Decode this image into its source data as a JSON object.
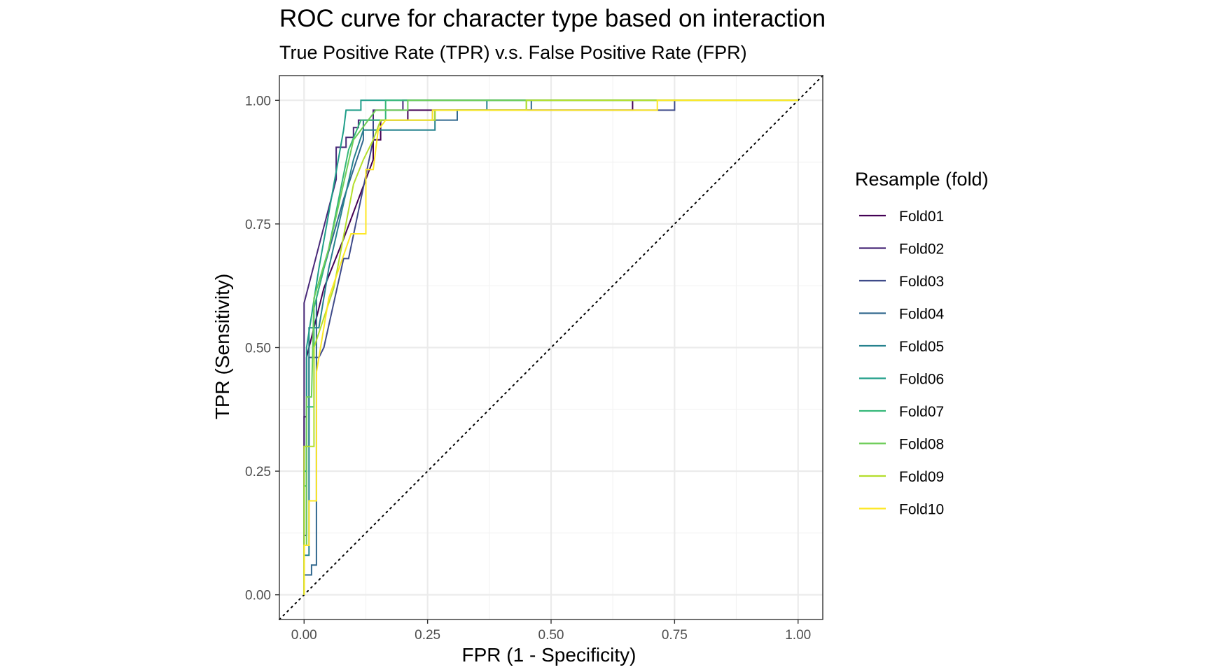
{
  "chart_data": {
    "type": "line",
    "title": "ROC curve for character type based on interaction",
    "subtitle": "True Positive Rate (TPR) v.s. False Positive Rate (FPR)",
    "xlabel": "FPR (1 - Specificity)",
    "ylabel": "TPR (Sensitivity)",
    "xlim": [
      -0.05,
      1.05
    ],
    "ylim": [
      -0.05,
      1.05
    ],
    "x_ticks": [
      "0.00",
      "0.25",
      "0.50",
      "0.75",
      "1.00"
    ],
    "y_ticks": [
      "0.00",
      "0.25",
      "0.50",
      "0.75",
      "1.00"
    ],
    "x_tick_values": [
      0,
      0.25,
      0.5,
      0.75,
      1
    ],
    "y_tick_values": [
      0,
      0.25,
      0.5,
      0.75,
      1
    ],
    "grid": true,
    "reference_line": {
      "style": "dotted",
      "from": [
        -0.05,
        -0.05
      ],
      "to": [
        1.05,
        1.05
      ]
    },
    "legend": {
      "title": "Resample (fold)",
      "position": "right"
    },
    "series": [
      {
        "name": "Fold01",
        "color": "#440154",
        "points": [
          [
            0,
            0
          ],
          [
            0,
            0.36
          ],
          [
            0.005,
            0.36
          ],
          [
            0.005,
            0.48
          ],
          [
            0.04,
            0.62
          ],
          [
            0.08,
            0.72
          ],
          [
            0.14,
            0.88
          ],
          [
            0.14,
            0.92
          ],
          [
            0.155,
            0.92
          ],
          [
            0.155,
            0.96
          ],
          [
            0.21,
            0.96
          ],
          [
            0.21,
            0.98
          ],
          [
            0.665,
            0.98
          ],
          [
            0.665,
            1
          ],
          [
            1,
            1
          ]
        ]
      },
      {
        "name": "Fold02",
        "color": "#482878",
        "points": [
          [
            0,
            0
          ],
          [
            0,
            0.59
          ],
          [
            0.065,
            0.84
          ],
          [
            0.065,
            0.905
          ],
          [
            0.085,
            0.905
          ],
          [
            0.085,
            0.925
          ],
          [
            0.1,
            0.925
          ],
          [
            0.1,
            0.945
          ],
          [
            0.11,
            0.945
          ],
          [
            0.11,
            0.96
          ],
          [
            0.14,
            0.96
          ],
          [
            0.14,
            0.98
          ],
          [
            0.2,
            0.98
          ],
          [
            0.2,
            1
          ],
          [
            1,
            1
          ]
        ]
      },
      {
        "name": "Fold03",
        "color": "#3E4A89",
        "points": [
          [
            0,
            0
          ],
          [
            0,
            0.12
          ],
          [
            0.005,
            0.12
          ],
          [
            0.005,
            0.3
          ],
          [
            0.01,
            0.3
          ],
          [
            0.01,
            0.48
          ],
          [
            0.03,
            0.48
          ],
          [
            0.04,
            0.5
          ],
          [
            0.08,
            0.68
          ],
          [
            0.09,
            0.68
          ],
          [
            0.14,
            0.92
          ],
          [
            0.14,
            0.96
          ],
          [
            0.26,
            0.96
          ],
          [
            0.26,
            0.98
          ],
          [
            0.75,
            0.98
          ],
          [
            0.75,
            1
          ],
          [
            1,
            1
          ]
        ]
      },
      {
        "name": "Fold04",
        "color": "#31688E",
        "points": [
          [
            0,
            0
          ],
          [
            0,
            0.04
          ],
          [
            0.015,
            0.04
          ],
          [
            0.015,
            0.06
          ],
          [
            0.025,
            0.06
          ],
          [
            0.025,
            0.6
          ],
          [
            0.04,
            0.66
          ],
          [
            0.08,
            0.8
          ],
          [
            0.12,
            0.92
          ],
          [
            0.12,
            0.96
          ],
          [
            0.31,
            0.96
          ],
          [
            0.31,
            0.98
          ],
          [
            0.46,
            0.98
          ],
          [
            0.46,
            1
          ],
          [
            1,
            1
          ]
        ]
      },
      {
        "name": "Fold05",
        "color": "#26828E",
        "points": [
          [
            0,
            0
          ],
          [
            0,
            0.08
          ],
          [
            0.01,
            0.08
          ],
          [
            0.01,
            0.54
          ],
          [
            0.03,
            0.54
          ],
          [
            0.05,
            0.66
          ],
          [
            0.1,
            0.88
          ],
          [
            0.12,
            0.94
          ],
          [
            0.265,
            0.94
          ],
          [
            0.265,
            0.98
          ],
          [
            0.37,
            0.98
          ],
          [
            0.37,
            1
          ],
          [
            1,
            1
          ]
        ]
      },
      {
        "name": "Fold06",
        "color": "#1F9E89",
        "points": [
          [
            0,
            0
          ],
          [
            0,
            0.25
          ],
          [
            0.005,
            0.25
          ],
          [
            0.005,
            0.5
          ],
          [
            0.03,
            0.66
          ],
          [
            0.08,
            0.94
          ],
          [
            0.085,
            0.98
          ],
          [
            0.115,
            0.98
          ],
          [
            0.115,
            1
          ],
          [
            1,
            1
          ]
        ]
      },
      {
        "name": "Fold07",
        "color": "#35B779",
        "points": [
          [
            0,
            0
          ],
          [
            0,
            0.22
          ],
          [
            0.005,
            0.22
          ],
          [
            0.005,
            0.38
          ],
          [
            0.02,
            0.38
          ],
          [
            0.02,
            0.58
          ],
          [
            0.05,
            0.7
          ],
          [
            0.09,
            0.9
          ],
          [
            0.115,
            0.96
          ],
          [
            0.165,
            0.96
          ],
          [
            0.165,
            1
          ],
          [
            1,
            1
          ]
        ]
      },
      {
        "name": "Fold08",
        "color": "#6DCD59",
        "points": [
          [
            0,
            0
          ],
          [
            0,
            0.1
          ],
          [
            0.005,
            0.1
          ],
          [
            0.005,
            0.4
          ],
          [
            0.015,
            0.4
          ],
          [
            0.02,
            0.6
          ],
          [
            0.05,
            0.7
          ],
          [
            0.1,
            0.92
          ],
          [
            0.145,
            0.98
          ],
          [
            0.21,
            0.98
          ],
          [
            0.21,
            1
          ],
          [
            0.45,
            1
          ],
          [
            0.45,
            0.98
          ],
          [
            0.45,
            1
          ],
          [
            1,
            1
          ]
        ]
      },
      {
        "name": "Fold09",
        "color": "#B4DE2C",
        "points": [
          [
            0,
            0
          ],
          [
            0,
            0.3
          ],
          [
            0.02,
            0.3
          ],
          [
            0.02,
            0.5
          ],
          [
            0.06,
            0.62
          ],
          [
            0.1,
            0.83
          ],
          [
            0.12,
            0.88
          ],
          [
            0.14,
            0.92
          ],
          [
            0.155,
            0.96
          ],
          [
            0.265,
            0.96
          ],
          [
            0.265,
            0.98
          ],
          [
            0.45,
            0.98
          ],
          [
            0.45,
            1
          ],
          [
            1,
            1
          ]
        ]
      },
      {
        "name": "Fold10",
        "color": "#FDE725",
        "points": [
          [
            0,
            0
          ],
          [
            0,
            0.1
          ],
          [
            0.01,
            0.1
          ],
          [
            0.01,
            0.19
          ],
          [
            0.025,
            0.19
          ],
          [
            0.025,
            0.45
          ],
          [
            0.05,
            0.6
          ],
          [
            0.095,
            0.73
          ],
          [
            0.125,
            0.73
          ],
          [
            0.125,
            0.86
          ],
          [
            0.14,
            0.86
          ],
          [
            0.15,
            0.94
          ],
          [
            0.165,
            0.96
          ],
          [
            0.26,
            0.96
          ],
          [
            0.26,
            0.98
          ],
          [
            0.715,
            0.98
          ],
          [
            0.715,
            1
          ],
          [
            1,
            1
          ]
        ]
      }
    ]
  }
}
